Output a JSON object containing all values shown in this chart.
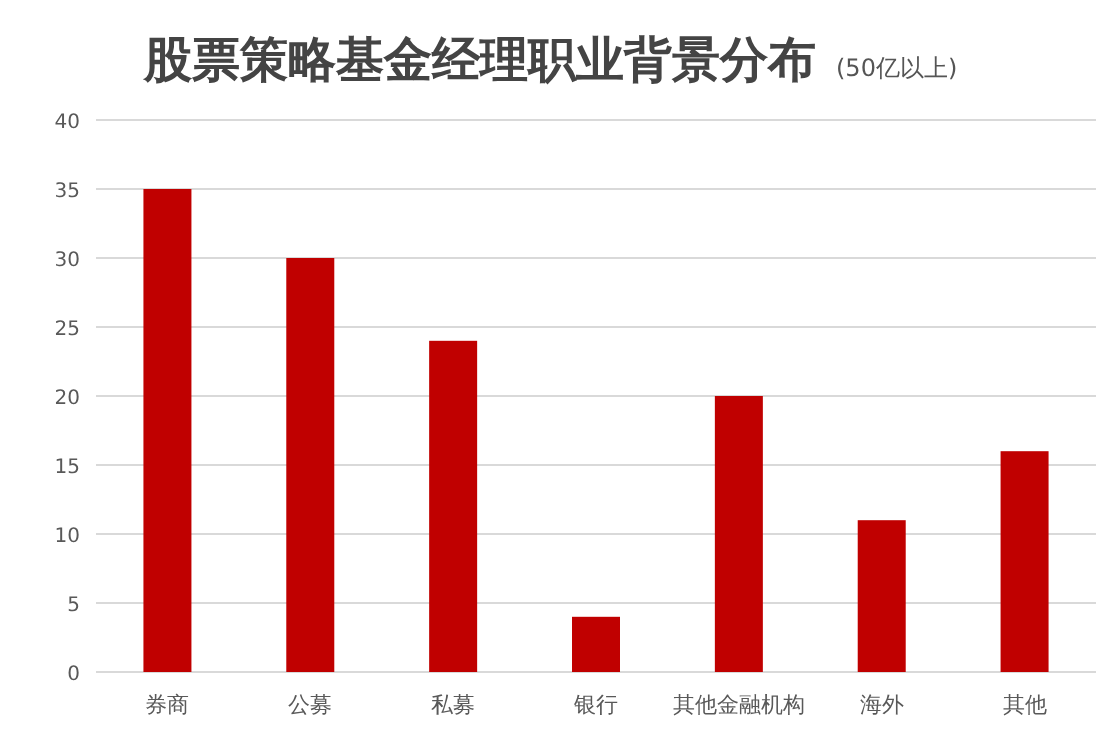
{
  "chart_data": {
    "type": "bar",
    "title": "股票策略基金经理职业背景分布",
    "subtitle": "(50亿以上)",
    "categories": [
      "券商",
      "公募",
      "私募",
      "银行",
      "其他金融机构",
      "海外",
      "其他"
    ],
    "values": [
      35,
      30,
      24,
      4,
      20,
      11,
      16
    ],
    "color": "#c00000",
    "ylim": [
      0,
      40
    ],
    "yticks": [
      0,
      5,
      10,
      15,
      20,
      25,
      30,
      35,
      40
    ],
    "grid": "y"
  }
}
